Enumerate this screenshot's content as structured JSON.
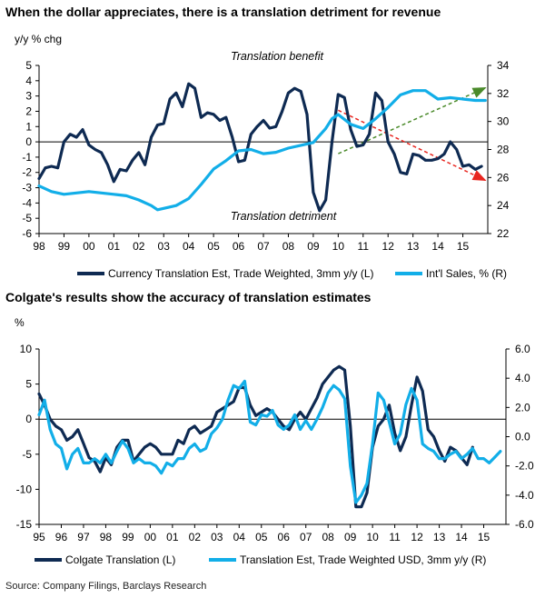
{
  "chart_data": [
    {
      "type": "line",
      "title": "When the dollar appreciates, there is a translation detriment for revenue",
      "left_axis_label": "y/y % chg",
      "ylim_left": [
        -6,
        5
      ],
      "ylim_right": [
        22,
        34
      ],
      "y_ticks_left": [
        "5",
        "4",
        "3",
        "2",
        "1",
        "0",
        "-1",
        "-2",
        "-3",
        "-4",
        "-5",
        "-6"
      ],
      "y_ticks_right": [
        "34",
        "32",
        "30",
        "28",
        "26",
        "24",
        "22"
      ],
      "x_ticks": [
        "98",
        "99",
        "00",
        "01",
        "02",
        "03",
        "04",
        "05",
        "06",
        "07",
        "08",
        "09",
        "10",
        "11",
        "12",
        "13",
        "14",
        "15"
      ],
      "annotations": {
        "benefit": "Translation benefit",
        "detriment": "Translation detriment"
      },
      "arrows": [
        {
          "color": "#4a8a2a",
          "x": [
            2010.0,
            2015.9
          ],
          "y": [
            27.7,
            32.4
          ],
          "axis": "right"
        },
        {
          "color": "#e8261f",
          "x": [
            2010.0,
            2015.9
          ],
          "y": [
            30.8,
            25.8
          ],
          "axis": "right"
        }
      ],
      "series": [
        {
          "name": "Currency Translation Est, Trade Weighted, 3mm y/y (L)",
          "axis": "left",
          "color": "#0e2a52",
          "x": [
            1998.0,
            1998.25,
            1998.5,
            1998.75,
            1999.0,
            1999.25,
            1999.5,
            1999.75,
            2000.0,
            2000.25,
            2000.5,
            2000.75,
            2001.0,
            2001.25,
            2001.5,
            2001.75,
            2002.0,
            2002.25,
            2002.5,
            2002.75,
            2003.0,
            2003.25,
            2003.5,
            2003.75,
            2004.0,
            2004.25,
            2004.5,
            2004.75,
            2005.0,
            2005.25,
            2005.5,
            2005.75,
            2006.0,
            2006.25,
            2006.5,
            2006.75,
            2007.0,
            2007.25,
            2007.5,
            2007.75,
            2008.0,
            2008.25,
            2008.5,
            2008.75,
            2009.0,
            2009.25,
            2009.5,
            2009.75,
            2010.0,
            2010.25,
            2010.5,
            2010.75,
            2011.0,
            2011.25,
            2011.5,
            2011.75,
            2012.0,
            2012.25,
            2012.5,
            2012.75,
            2013.0,
            2013.25,
            2013.5,
            2013.75,
            2014.0,
            2014.25,
            2014.5,
            2014.75,
            2015.0,
            2015.25,
            2015.5,
            2015.75
          ],
          "values": [
            -2.4,
            -1.7,
            -1.6,
            -1.7,
            0.0,
            0.5,
            0.3,
            0.8,
            -0.2,
            -0.5,
            -0.7,
            -1.5,
            -2.6,
            -1.8,
            -1.9,
            -1.2,
            -0.7,
            -1.5,
            0.3,
            1.1,
            1.2,
            2.8,
            3.2,
            2.3,
            3.8,
            3.5,
            1.6,
            1.9,
            1.8,
            1.4,
            1.6,
            0.3,
            -1.3,
            -1.2,
            0.5,
            1.0,
            1.4,
            0.9,
            1.0,
            2.0,
            3.2,
            3.5,
            3.3,
            1.8,
            -3.3,
            -4.5,
            -3.8,
            0.0,
            3.1,
            2.9,
            0.8,
            -0.3,
            -0.2,
            0.5,
            3.2,
            2.7,
            0.0,
            -0.8,
            -2.0,
            -2.1,
            -0.8,
            -0.9,
            -1.2,
            -1.2,
            -1.1,
            -0.8,
            0.0,
            -0.5,
            -1.6,
            -1.5,
            -1.8,
            -1.6
          ]
        },
        {
          "name": "Int'l Sales, % (R)",
          "axis": "right",
          "color": "#12aee8",
          "x": [
            1998.0,
            1998.5,
            1999.0,
            1999.5,
            2000.0,
            2000.5,
            2001.0,
            2001.5,
            2002.0,
            2002.5,
            2002.75,
            2003.0,
            2003.5,
            2004.0,
            2004.5,
            2005.0,
            2005.5,
            2006.0,
            2006.5,
            2007.0,
            2007.5,
            2008.0,
            2008.5,
            2009.0,
            2009.5,
            2009.75,
            2010.0,
            2010.5,
            2011.0,
            2011.5,
            2012.0,
            2012.5,
            2013.0,
            2013.5,
            2014.0,
            2014.5,
            2015.0,
            2015.5,
            2015.9
          ],
          "values": [
            25.4,
            25.0,
            24.8,
            24.9,
            25.0,
            24.9,
            24.8,
            24.7,
            24.4,
            24.0,
            23.7,
            23.8,
            24.0,
            24.5,
            25.5,
            26.6,
            27.2,
            27.9,
            28.0,
            27.7,
            27.8,
            28.1,
            28.3,
            28.5,
            29.5,
            30.2,
            30.5,
            29.8,
            29.5,
            30.2,
            31.0,
            31.9,
            32.2,
            32.2,
            31.6,
            31.7,
            31.6,
            31.5,
            31.5
          ]
        }
      ]
    },
    {
      "type": "line",
      "title": "Colgate's results show the accuracy of translation estimates",
      "left_axis_label": "%",
      "ylim_left": [
        -15,
        10
      ],
      "ylim_right": [
        -6.0,
        6.0
      ],
      "y_ticks_left": [
        "10",
        "5",
        "0",
        "-5",
        "-10",
        "-15"
      ],
      "y_ticks_right": [
        "6.0",
        "4.0",
        "2.0",
        "0.0",
        "-2.0",
        "-4.0",
        "-6.0"
      ],
      "x_ticks": [
        "95",
        "96",
        "97",
        "98",
        "99",
        "00",
        "01",
        "02",
        "03",
        "04",
        "05",
        "06",
        "07",
        "08",
        "09",
        "10",
        "11",
        "12",
        "13",
        "14",
        "15"
      ],
      "series": [
        {
          "name": "Colgate Translation (L)",
          "axis": "left",
          "color": "#0e2a52",
          "x": [
            1995.0,
            1995.25,
            1995.5,
            1995.75,
            1996.0,
            1996.25,
            1996.5,
            1996.75,
            1997.0,
            1997.25,
            1997.5,
            1997.75,
            1998.0,
            1998.25,
            1998.5,
            1998.75,
            1999.0,
            1999.25,
            1999.5,
            1999.75,
            2000.0,
            2000.25,
            2000.5,
            2000.75,
            2001.0,
            2001.25,
            2001.5,
            2001.75,
            2002.0,
            2002.25,
            2002.5,
            2002.75,
            2003.0,
            2003.25,
            2003.5,
            2003.75,
            2004.0,
            2004.25,
            2004.5,
            2004.75,
            2005.0,
            2005.25,
            2005.5,
            2005.75,
            2006.0,
            2006.25,
            2006.5,
            2006.75,
            2007.0,
            2007.25,
            2007.5,
            2007.75,
            2008.0,
            2008.25,
            2008.5,
            2008.75,
            2009.0,
            2009.25,
            2009.5,
            2009.75,
            2010.0,
            2010.25,
            2010.5,
            2010.75,
            2011.0,
            2011.25,
            2011.5,
            2011.75,
            2012.0,
            2012.25,
            2012.5,
            2012.75,
            2013.0,
            2013.25,
            2013.5,
            2013.75,
            2014.0,
            2014.25,
            2014.5
          ],
          "values": [
            3.6,
            2.0,
            0.0,
            -1.0,
            -1.5,
            -3.0,
            -2.5,
            -1.5,
            -3.5,
            -5.5,
            -6.0,
            -7.5,
            -5.5,
            -6.5,
            -4.0,
            -3.0,
            -3.0,
            -6.0,
            -5.0,
            -4.0,
            -3.5,
            -4.0,
            -5.0,
            -5.0,
            -5.0,
            -3.0,
            -3.5,
            -1.5,
            -1.0,
            -2.0,
            -1.5,
            -1.0,
            1.0,
            1.5,
            2.0,
            2.5,
            4.5,
            4.5,
            2.0,
            0.5,
            1.0,
            1.5,
            1.0,
            0.0,
            -1.0,
            -1.5,
            0.0,
            1.0,
            0.0,
            1.5,
            3.0,
            5.0,
            6.0,
            7.0,
            7.5,
            7.0,
            -1.0,
            -12.5,
            -12.5,
            -10.5,
            -4.0,
            -1.0,
            0.0,
            2.0,
            -2.0,
            -4.5,
            -2.5,
            2.0,
            6.0,
            4.0,
            -1.5,
            -2.5,
            -4.5,
            -6.0,
            -4.0,
            -4.5,
            -5.5,
            -6.5,
            -4.0
          ]
        },
        {
          "name": "Translation Est, Trade Weighted USD, 3mm y/y (R)",
          "axis": "right",
          "color": "#12aee8",
          "x": [
            1995.0,
            1995.25,
            1995.5,
            1995.75,
            1996.0,
            1996.25,
            1996.5,
            1996.75,
            1997.0,
            1997.25,
            1997.5,
            1997.75,
            1998.0,
            1998.25,
            1998.5,
            1998.75,
            1999.0,
            1999.25,
            1999.5,
            1999.75,
            2000.0,
            2000.25,
            2000.5,
            2000.75,
            2001.0,
            2001.25,
            2001.5,
            2001.75,
            2002.0,
            2002.25,
            2002.5,
            2002.75,
            2003.0,
            2003.25,
            2003.5,
            2003.75,
            2004.0,
            2004.25,
            2004.5,
            2004.75,
            2005.0,
            2005.25,
            2005.5,
            2005.75,
            2006.0,
            2006.25,
            2006.5,
            2006.75,
            2007.0,
            2007.25,
            2007.5,
            2007.75,
            2008.0,
            2008.25,
            2008.5,
            2008.75,
            2009.0,
            2009.25,
            2009.5,
            2009.75,
            2010.0,
            2010.25,
            2010.5,
            2010.75,
            2011.0,
            2011.25,
            2011.5,
            2011.75,
            2012.0,
            2012.25,
            2012.5,
            2012.75,
            2013.0,
            2013.25,
            2013.5,
            2013.75,
            2014.0,
            2014.25,
            2014.5,
            2014.75,
            2015.0,
            2015.25,
            2015.5,
            2015.75
          ],
          "values": [
            1.5,
            2.5,
            0.5,
            -0.5,
            -0.8,
            -2.2,
            -1.2,
            -0.8,
            -1.8,
            -1.8,
            -1.5,
            -1.8,
            -1.2,
            -1.8,
            -1.0,
            -0.3,
            -0.8,
            -1.8,
            -1.5,
            -1.8,
            -1.8,
            -2.0,
            -2.5,
            -1.8,
            -2.0,
            -1.5,
            -1.5,
            -0.8,
            -0.5,
            -1.0,
            -0.8,
            0.2,
            0.6,
            1.2,
            2.5,
            3.5,
            3.3,
            3.8,
            1.0,
            0.8,
            1.5,
            1.4,
            1.8,
            0.8,
            0.5,
            0.8,
            1.5,
            0.5,
            1.1,
            0.5,
            1.2,
            2.0,
            3.0,
            3.5,
            3.2,
            2.6,
            -2.0,
            -4.5,
            -4.0,
            -3.2,
            -0.5,
            3.0,
            2.5,
            1.0,
            -0.5,
            0.2,
            2.2,
            3.3,
            2.5,
            -0.5,
            -0.8,
            -1.0,
            -1.5,
            -1.5,
            -1.2,
            -1.0,
            -1.5,
            -1.2,
            -0.8,
            -1.5,
            -1.5,
            -1.8,
            -1.4,
            -1.0
          ]
        }
      ]
    }
  ],
  "legends": [
    [
      "Currency Translation Est, Trade Weighted, 3mm y/y (L)",
      "Int'l Sales, % (R)"
    ],
    [
      "Colgate Translation (L)",
      "Translation Est, Trade Weighted USD, 3mm y/y (R)"
    ]
  ],
  "source": "Source: Company Filings, Barclays Research"
}
